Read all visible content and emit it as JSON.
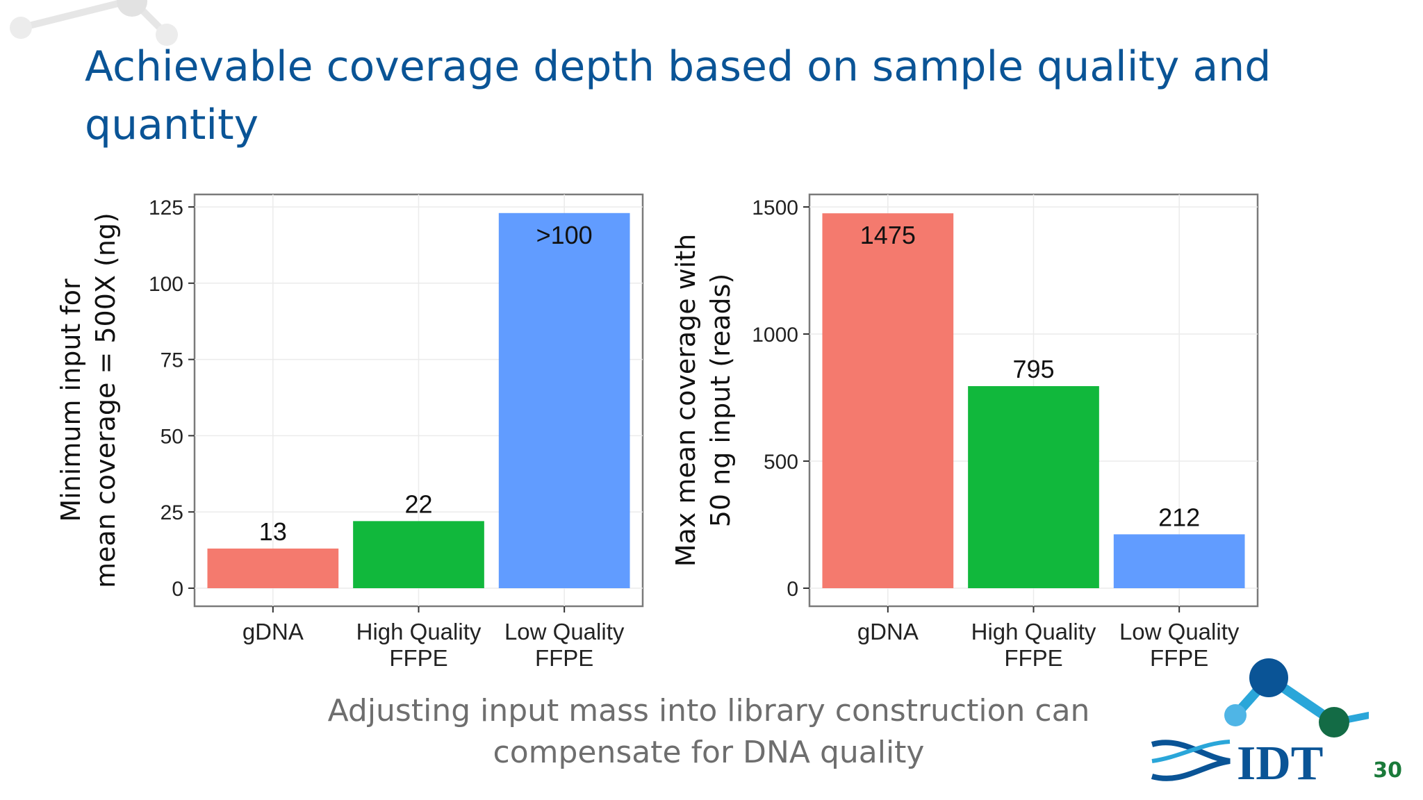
{
  "slide": {
    "title": "Achievable coverage depth based on sample quality and quantity",
    "caption_line1": "Adjusting input mass into library construction can",
    "caption_line2": "compensate for DNA quality",
    "page_number": "30",
    "logo_text": "IDT"
  },
  "chart_data": [
    {
      "type": "bar",
      "categories": [
        [
          "gDNA"
        ],
        [
          "High Quality",
          "FFPE"
        ],
        [
          "Low Quality",
          "FFPE"
        ]
      ],
      "values": [
        13,
        22,
        123
      ],
      "data_labels": [
        "13",
        "22",
        ">100"
      ],
      "colors": [
        "#f47a6e",
        "#11b83c",
        "#619cff"
      ],
      "ylabel": [
        "Minimum input for",
        "mean coverage = 500X (ng)"
      ],
      "ylim": [
        0,
        125
      ],
      "yticks": [
        0,
        25,
        50,
        75,
        100,
        125
      ],
      "grid": true
    },
    {
      "type": "bar",
      "categories": [
        [
          "gDNA"
        ],
        [
          "High Quality",
          "FFPE"
        ],
        [
          "Low Quality",
          "FFPE"
        ]
      ],
      "values": [
        1475,
        795,
        212
      ],
      "data_labels": [
        "1475",
        "795",
        "212"
      ],
      "colors": [
        "#f47a6e",
        "#11b83c",
        "#619cff"
      ],
      "ylabel": [
        "Max mean coverage with",
        "50 ng input (reads)"
      ],
      "ylim": [
        0,
        1500
      ],
      "yticks": [
        0,
        500,
        1000,
        1500
      ],
      "grid": true
    }
  ]
}
